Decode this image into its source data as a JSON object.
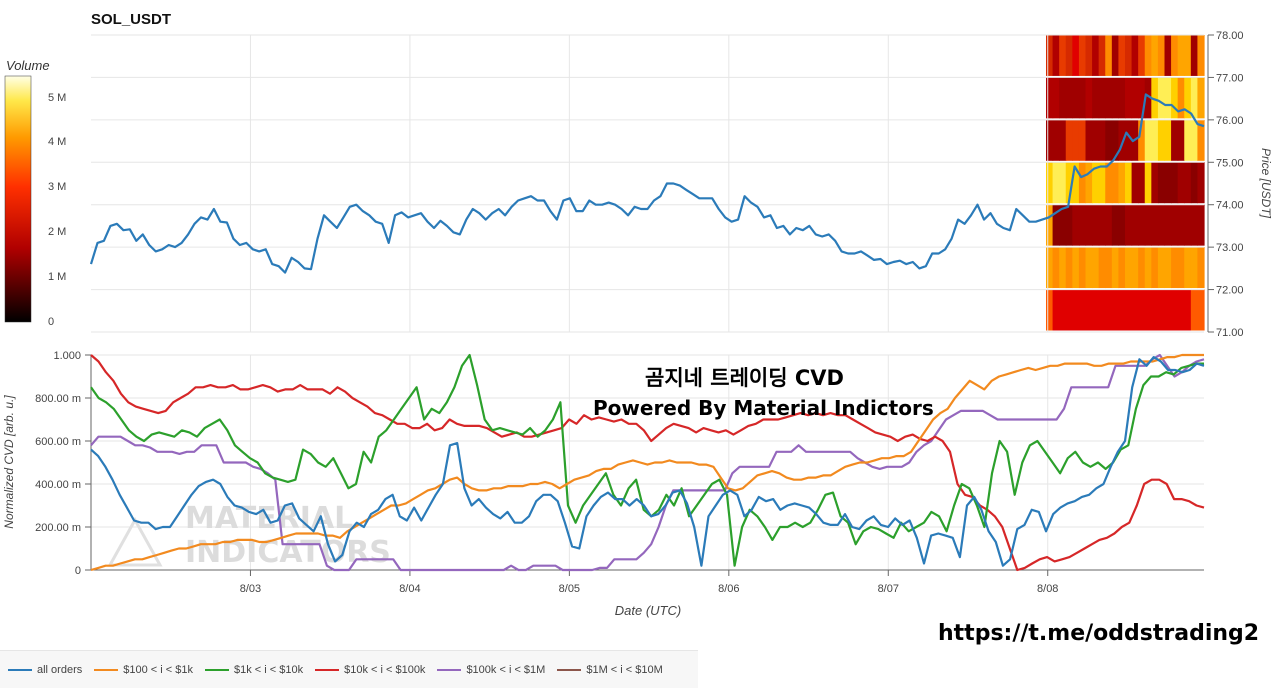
{
  "page": {
    "title": "SOL_USDT",
    "overlay_line1": "곰지네 트레이딩 CVD",
    "overlay_line2": "Powered By Material Indictors",
    "link": "https://t.me/oddstrading2",
    "watermark": "MATERIAL INDICATORS"
  },
  "colors": {
    "all": "#2b7bb9",
    "s100": "#f28a1f",
    "s1k": "#2ca02c",
    "s10k": "#d62728",
    "s100k": "#9467bd",
    "s1m": "#8c564b",
    "grid": "#e6e6e6"
  },
  "chart_data": [
    {
      "type": "line",
      "title": "SOL_USDT",
      "ylabel": "Price [USDT]",
      "ylim": [
        71.0,
        78.0
      ],
      "yticks": [
        "78.00",
        "77.00",
        "76.00",
        "75.00",
        "74.00",
        "73.00",
        "72.00",
        "71.00"
      ],
      "xticks": [
        "8/03",
        "8/04",
        "8/05",
        "8/06",
        "8/07",
        "8/08"
      ],
      "x_range": [
        0,
        6.98
      ],
      "colorbar": {
        "label": "Volume",
        "ticks": [
          "5 M",
          "4 M",
          "3 M",
          "2 M",
          "1 M",
          "0"
        ]
      },
      "series": [
        {
          "key": "all",
          "values": [
            72.6,
            73.1,
            73.15,
            73.5,
            73.55,
            73.4,
            73.42,
            73.15,
            73.3,
            73.05,
            72.9,
            72.95,
            73.05,
            73.0,
            73.1,
            73.3,
            73.55,
            73.7,
            73.65,
            73.9,
            73.6,
            73.58,
            73.2,
            73.05,
            73.1,
            72.95,
            72.9,
            72.95,
            72.6,
            72.55,
            72.4,
            72.75,
            72.65,
            72.5,
            72.48,
            73.2,
            73.75,
            73.6,
            73.45,
            73.7,
            73.95,
            74.0,
            73.85,
            73.75,
            73.6,
            73.55,
            73.1,
            73.75,
            73.82,
            73.7,
            73.75,
            73.8,
            73.6,
            73.45,
            73.62,
            73.5,
            73.35,
            73.3,
            73.65,
            73.9,
            73.8,
            73.65,
            73.8,
            73.9,
            73.75,
            73.95,
            74.1,
            74.15,
            74.2,
            74.1,
            74.1,
            73.85,
            73.65,
            74.1,
            74.15,
            73.85,
            73.85,
            74.1,
            74.0,
            74.0,
            74.05,
            74.0,
            73.9,
            73.75,
            73.95,
            73.9,
            73.9,
            74.1,
            74.2,
            74.5,
            74.5,
            74.45,
            74.35,
            74.25,
            74.15,
            74.15,
            74.15,
            73.9,
            73.7,
            73.6,
            73.65,
            74.2,
            74.05,
            73.95,
            73.7,
            73.75,
            73.45,
            73.5,
            73.3,
            73.45,
            73.4,
            73.5,
            73.3,
            73.25,
            73.3,
            73.15,
            72.9,
            72.85,
            72.85,
            72.9,
            72.8,
            72.7,
            72.72,
            72.6,
            72.65,
            72.68,
            72.6,
            72.65,
            72.5,
            72.55,
            72.85,
            72.85,
            72.95,
            73.2,
            73.65,
            73.55,
            73.75,
            74.0,
            73.65,
            73.8,
            73.55,
            73.45,
            73.4,
            73.9,
            73.75,
            73.6,
            73.6,
            73.65,
            73.7,
            73.8,
            73.9,
            73.95,
            74.9,
            74.65,
            74.72,
            74.85,
            74.9,
            74.9,
            75.05,
            75.3,
            75.7,
            75.5,
            75.6,
            76.6,
            76.5,
            76.45,
            76.35,
            76.35,
            76.2,
            76.25,
            76.15,
            75.9,
            75.85
          ]
        }
      ]
    },
    {
      "type": "line",
      "ylabel": "Normalized CVD [arb. u.]",
      "xlabel": "Date (UTC)",
      "ylim": [
        0,
        1.0
      ],
      "yticks": [
        "1.000",
        "800.00 m",
        "600.00 m",
        "400.00 m",
        "200.00 m",
        "0"
      ],
      "xticks": [
        "8/03",
        "8/04",
        "8/05",
        "8/06",
        "8/07",
        "8/08"
      ],
      "x_range": [
        0,
        6.98
      ],
      "series": [
        {
          "key": "all",
          "name": "all orders",
          "values": [
            0.56,
            0.53,
            0.48,
            0.42,
            0.35,
            0.29,
            0.23,
            0.22,
            0.22,
            0.19,
            0.2,
            0.2,
            0.25,
            0.3,
            0.35,
            0.39,
            0.41,
            0.42,
            0.4,
            0.34,
            0.3,
            0.29,
            0.27,
            0.26,
            0.28,
            0.22,
            0.23,
            0.3,
            0.31,
            0.24,
            0.21,
            0.18,
            0.25,
            0.12,
            0.04,
            0.07,
            0.18,
            0.22,
            0.2,
            0.26,
            0.28,
            0.33,
            0.35,
            0.25,
            0.23,
            0.29,
            0.23,
            0.29,
            0.35,
            0.4,
            0.58,
            0.59,
            0.38,
            0.3,
            0.33,
            0.29,
            0.26,
            0.24,
            0.27,
            0.22,
            0.22,
            0.25,
            0.32,
            0.35,
            0.35,
            0.32,
            0.22,
            0.11,
            0.1,
            0.25,
            0.3,
            0.34,
            0.36,
            0.33,
            0.33,
            0.3,
            0.33,
            0.3,
            0.25,
            0.26,
            0.3,
            0.36,
            0.37,
            0.31,
            0.2,
            0.02,
            0.25,
            0.3,
            0.35,
            0.37,
            0.35,
            0.25,
            0.28,
            0.34,
            0.32,
            0.33,
            0.28,
            0.3,
            0.31,
            0.3,
            0.29,
            0.26,
            0.22,
            0.21,
            0.21,
            0.26,
            0.2,
            0.19,
            0.23,
            0.25,
            0.21,
            0.2,
            0.24,
            0.21,
            0.23,
            0.15,
            0.03,
            0.16,
            0.17,
            0.16,
            0.15,
            0.06,
            0.3,
            0.34,
            0.28,
            0.18,
            0.13,
            0.02,
            0.05,
            0.19,
            0.21,
            0.28,
            0.27,
            0.18,
            0.26,
            0.29,
            0.31,
            0.32,
            0.34,
            0.35,
            0.38,
            0.4,
            0.48,
            0.55,
            0.6,
            0.85,
            0.98,
            0.95,
            0.99,
            0.97,
            0.93,
            0.93,
            0.92,
            0.93,
            0.96,
            0.95
          ]
        },
        {
          "key": "s100",
          "name": "$100 < i < $1k",
          "values": [
            0.0,
            0.01,
            0.02,
            0.02,
            0.03,
            0.04,
            0.05,
            0.05,
            0.06,
            0.07,
            0.08,
            0.09,
            0.1,
            0.1,
            0.11,
            0.12,
            0.12,
            0.12,
            0.13,
            0.13,
            0.14,
            0.14,
            0.14,
            0.13,
            0.13,
            0.14,
            0.15,
            0.16,
            0.17,
            0.17,
            0.17,
            0.17,
            0.16,
            0.16,
            0.15,
            0.18,
            0.2,
            0.22,
            0.24,
            0.26,
            0.28,
            0.3,
            0.3,
            0.31,
            0.33,
            0.35,
            0.37,
            0.38,
            0.4,
            0.42,
            0.43,
            0.4,
            0.38,
            0.37,
            0.37,
            0.38,
            0.38,
            0.39,
            0.39,
            0.39,
            0.4,
            0.4,
            0.41,
            0.4,
            0.38,
            0.4,
            0.42,
            0.43,
            0.44,
            0.46,
            0.47,
            0.47,
            0.49,
            0.5,
            0.51,
            0.5,
            0.49,
            0.5,
            0.5,
            0.51,
            0.5,
            0.5,
            0.5,
            0.49,
            0.49,
            0.48,
            0.43,
            0.38,
            0.37,
            0.38,
            0.41,
            0.44,
            0.45,
            0.46,
            0.45,
            0.43,
            0.42,
            0.42,
            0.43,
            0.43,
            0.44,
            0.44,
            0.46,
            0.48,
            0.49,
            0.5,
            0.5,
            0.51,
            0.52,
            0.52,
            0.53,
            0.53,
            0.55,
            0.6,
            0.65,
            0.7,
            0.73,
            0.75,
            0.8,
            0.84,
            0.88,
            0.86,
            0.84,
            0.88,
            0.9,
            0.91,
            0.92,
            0.93,
            0.94,
            0.93,
            0.94,
            0.95,
            0.95,
            0.96,
            0.96,
            0.96,
            0.96,
            0.95,
            0.95,
            0.96,
            0.96,
            0.96,
            0.97,
            0.97,
            0.97,
            0.97,
            0.98,
            0.99,
            0.99,
            1.0,
            1.0,
            1.0,
            1.0
          ]
        },
        {
          "key": "s1k",
          "name": "$1k < i < $10k",
          "values": [
            0.85,
            0.8,
            0.78,
            0.75,
            0.7,
            0.65,
            0.62,
            0.6,
            0.63,
            0.64,
            0.63,
            0.62,
            0.65,
            0.64,
            0.62,
            0.66,
            0.68,
            0.7,
            0.65,
            0.58,
            0.55,
            0.52,
            0.5,
            0.45,
            0.43,
            0.42,
            0.41,
            0.42,
            0.56,
            0.54,
            0.5,
            0.48,
            0.52,
            0.45,
            0.38,
            0.4,
            0.55,
            0.5,
            0.62,
            0.65,
            0.7,
            0.75,
            0.8,
            0.85,
            0.7,
            0.75,
            0.73,
            0.78,
            0.85,
            0.95,
            1.0,
            0.86,
            0.7,
            0.65,
            0.66,
            0.65,
            0.64,
            0.63,
            0.66,
            0.62,
            0.65,
            0.7,
            0.78,
            0.3,
            0.22,
            0.3,
            0.35,
            0.4,
            0.45,
            0.35,
            0.3,
            0.38,
            0.42,
            0.28,
            0.25,
            0.28,
            0.35,
            0.3,
            0.38,
            0.25,
            0.3,
            0.35,
            0.4,
            0.42,
            0.35,
            0.02,
            0.2,
            0.28,
            0.25,
            0.2,
            0.14,
            0.2,
            0.2,
            0.22,
            0.2,
            0.22,
            0.28,
            0.35,
            0.36,
            0.25,
            0.22,
            0.12,
            0.18,
            0.2,
            0.19,
            0.17,
            0.15,
            0.22,
            0.18,
            0.2,
            0.22,
            0.27,
            0.25,
            0.18,
            0.3,
            0.4,
            0.38,
            0.3,
            0.2,
            0.45,
            0.6,
            0.55,
            0.35,
            0.5,
            0.58,
            0.6,
            0.55,
            0.5,
            0.45,
            0.52,
            0.55,
            0.5,
            0.48,
            0.5,
            0.47,
            0.5,
            0.56,
            0.58,
            0.75,
            0.86,
            0.9,
            0.9,
            0.92,
            0.91,
            0.94,
            0.95,
            0.96,
            0.96
          ]
        },
        {
          "key": "s10k",
          "name": "$10k < i < $100k",
          "values": [
            1.0,
            0.97,
            0.92,
            0.88,
            0.82,
            0.78,
            0.76,
            0.75,
            0.74,
            0.73,
            0.74,
            0.78,
            0.8,
            0.82,
            0.85,
            0.85,
            0.86,
            0.85,
            0.85,
            0.86,
            0.84,
            0.84,
            0.85,
            0.86,
            0.85,
            0.83,
            0.84,
            0.84,
            0.86,
            0.84,
            0.84,
            0.84,
            0.82,
            0.85,
            0.83,
            0.8,
            0.78,
            0.76,
            0.73,
            0.72,
            0.7,
            0.68,
            0.68,
            0.66,
            0.66,
            0.68,
            0.65,
            0.66,
            0.7,
            0.68,
            0.67,
            0.67,
            0.67,
            0.66,
            0.64,
            0.62,
            0.63,
            0.64,
            0.62,
            0.62,
            0.63,
            0.64,
            0.65,
            0.66,
            0.7,
            0.68,
            0.72,
            0.7,
            0.71,
            0.7,
            0.69,
            0.7,
            0.68,
            0.68,
            0.65,
            0.6,
            0.63,
            0.66,
            0.68,
            0.67,
            0.66,
            0.64,
            0.66,
            0.65,
            0.64,
            0.65,
            0.63,
            0.65,
            0.67,
            0.68,
            0.7,
            0.7,
            0.7,
            0.71,
            0.72,
            0.73,
            0.72,
            0.73,
            0.72,
            0.73,
            0.72,
            0.72,
            0.7,
            0.68,
            0.66,
            0.64,
            0.63,
            0.62,
            0.6,
            0.62,
            0.63,
            0.61,
            0.6,
            0.62,
            0.6,
            0.55,
            0.4,
            0.35,
            0.34,
            0.3,
            0.28,
            0.25,
            0.2,
            0.1,
            0.0,
            0.01,
            0.03,
            0.05,
            0.06,
            0.04,
            0.05,
            0.06,
            0.08,
            0.1,
            0.12,
            0.14,
            0.15,
            0.17,
            0.2,
            0.22,
            0.3,
            0.4,
            0.42,
            0.42,
            0.4,
            0.33,
            0.33,
            0.32,
            0.3,
            0.29
          ]
        },
        {
          "key": "s100k",
          "name": "$100k < i < $1M",
          "values": [
            0.58,
            0.62,
            0.62,
            0.62,
            0.62,
            0.6,
            0.58,
            0.58,
            0.57,
            0.55,
            0.55,
            0.55,
            0.54,
            0.55,
            0.55,
            0.58,
            0.58,
            0.58,
            0.5,
            0.5,
            0.5,
            0.5,
            0.48,
            0.47,
            0.45,
            0.42,
            0.12,
            0.12,
            0.12,
            0.12,
            0.12,
            0.12,
            0.02,
            0.0,
            0.0,
            0.0,
            0.05,
            0.05,
            0.05,
            0.05,
            0.05,
            0.05,
            0.0,
            0.0,
            0.0,
            0.0,
            0.0,
            0.0,
            0.0,
            0.0,
            0.0,
            0.0,
            0.0,
            0.0,
            0.0,
            0.0,
            0.0,
            0.02,
            0.0,
            0.0,
            0.02,
            0.02,
            0.02,
            0.02,
            0.0,
            0.0,
            0.0,
            0.0,
            0.0,
            0.01,
            0.01,
            0.05,
            0.05,
            0.05,
            0.05,
            0.08,
            0.12,
            0.2,
            0.3,
            0.37,
            0.37,
            0.37,
            0.37,
            0.37,
            0.37,
            0.37,
            0.37,
            0.45,
            0.48,
            0.48,
            0.48,
            0.48,
            0.48,
            0.55,
            0.55,
            0.55,
            0.58,
            0.55,
            0.55,
            0.55,
            0.55,
            0.55,
            0.55,
            0.55,
            0.52,
            0.5,
            0.48,
            0.47,
            0.48,
            0.48,
            0.48,
            0.5,
            0.55,
            0.58,
            0.6,
            0.65,
            0.7,
            0.72,
            0.74,
            0.74,
            0.74,
            0.74,
            0.72,
            0.7,
            0.7,
            0.7,
            0.7,
            0.7,
            0.7,
            0.7,
            0.7,
            0.7,
            0.75,
            0.85,
            0.85,
            0.85,
            0.85,
            0.85,
            0.85,
            0.95,
            0.95,
            0.95,
            0.95,
            0.95,
            0.98,
            1.0,
            0.95,
            0.9,
            0.92,
            0.95,
            0.97,
            0.98
          ]
        },
        {
          "key": "s1m",
          "name": "$1M < i < $10M",
          "values": []
        }
      ]
    }
  ]
}
